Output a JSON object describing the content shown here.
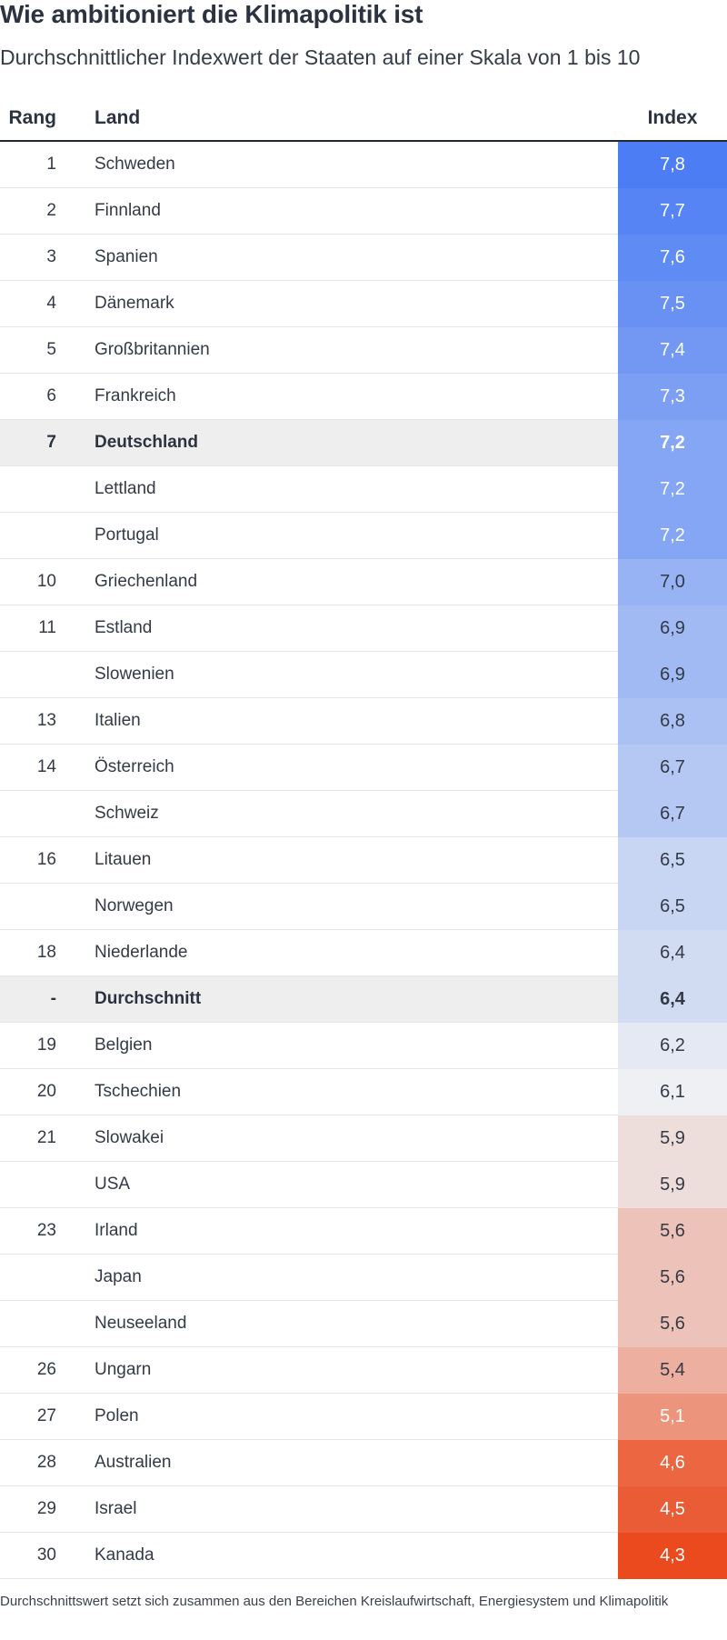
{
  "title": "Wie ambitioniert die Klimapolitik ist",
  "subtitle": "Durchschnittlicher Indexwert der Staaten auf einer Skala von 1 bis 10",
  "footnote": "Durchschnittswert setzt sich zusammen aus den Bereichen Kreislaufwirtschaft, Energiesystem und Klimapolitik",
  "colors": {
    "high": "#4c7df4",
    "neutral": "#eef0f3",
    "low": "#ea4a1d"
  },
  "chart_data": {
    "type": "table",
    "columns": [
      "Rang",
      "Land",
      "Index"
    ],
    "rows": [
      {
        "rank": "1",
        "country": "Schweden",
        "value": 7.8,
        "display": "7,8"
      },
      {
        "rank": "2",
        "country": "Finnland",
        "value": 7.7,
        "display": "7,7"
      },
      {
        "rank": "3",
        "country": "Spanien",
        "value": 7.6,
        "display": "7,6"
      },
      {
        "rank": "4",
        "country": "Dänemark",
        "value": 7.5,
        "display": "7,5"
      },
      {
        "rank": "5",
        "country": "Großbritannien",
        "value": 7.4,
        "display": "7,4"
      },
      {
        "rank": "6",
        "country": "Frankreich",
        "value": 7.3,
        "display": "7,3"
      },
      {
        "rank": "7",
        "country": "Deutschland",
        "value": 7.2,
        "display": "7,2",
        "highlight": true
      },
      {
        "rank": "",
        "country": "Lettland",
        "value": 7.2,
        "display": "7,2"
      },
      {
        "rank": "",
        "country": "Portugal",
        "value": 7.2,
        "display": "7,2"
      },
      {
        "rank": "10",
        "country": "Griechenland",
        "value": 7.0,
        "display": "7,0"
      },
      {
        "rank": "11",
        "country": "Estland",
        "value": 6.9,
        "display": "6,9"
      },
      {
        "rank": "",
        "country": "Slowenien",
        "value": 6.9,
        "display": "6,9"
      },
      {
        "rank": "13",
        "country": "Italien",
        "value": 6.8,
        "display": "6,8"
      },
      {
        "rank": "14",
        "country": "Österreich",
        "value": 6.7,
        "display": "6,7"
      },
      {
        "rank": "",
        "country": "Schweiz",
        "value": 6.7,
        "display": "6,7"
      },
      {
        "rank": "16",
        "country": "Litauen",
        "value": 6.5,
        "display": "6,5"
      },
      {
        "rank": "",
        "country": "Norwegen",
        "value": 6.5,
        "display": "6,5"
      },
      {
        "rank": "18",
        "country": "Niederlande",
        "value": 6.4,
        "display": "6,4"
      },
      {
        "rank": "-",
        "country": "Durchschnitt",
        "value": 6.4,
        "display": "6,4",
        "highlight": true
      },
      {
        "rank": "19",
        "country": "Belgien",
        "value": 6.2,
        "display": "6,2"
      },
      {
        "rank": "20",
        "country": "Tschechien",
        "value": 6.1,
        "display": "6,1"
      },
      {
        "rank": "21",
        "country": "Slowakei",
        "value": 5.9,
        "display": "5,9"
      },
      {
        "rank": "",
        "country": "USA",
        "value": 5.9,
        "display": "5,9"
      },
      {
        "rank": "23",
        "country": "Irland",
        "value": 5.6,
        "display": "5,6"
      },
      {
        "rank": "",
        "country": "Japan",
        "value": 5.6,
        "display": "5,6"
      },
      {
        "rank": "",
        "country": "Neuseeland",
        "value": 5.6,
        "display": "5,6"
      },
      {
        "rank": "26",
        "country": "Ungarn",
        "value": 5.4,
        "display": "5,4"
      },
      {
        "rank": "27",
        "country": "Polen",
        "value": 5.1,
        "display": "5,1"
      },
      {
        "rank": "28",
        "country": "Australien",
        "value": 4.6,
        "display": "4,6"
      },
      {
        "rank": "29",
        "country": "Israel",
        "value": 4.5,
        "display": "4,5"
      },
      {
        "rank": "30",
        "country": "Kanada",
        "value": 4.3,
        "display": "4,3"
      }
    ]
  }
}
